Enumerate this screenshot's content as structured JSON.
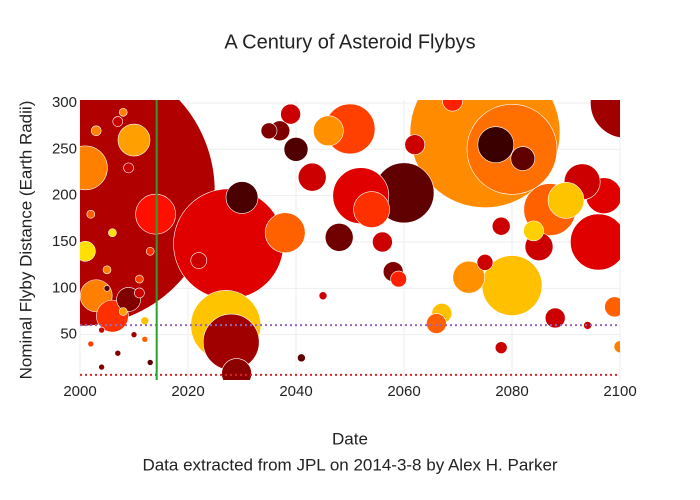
{
  "chart_data": {
    "type": "bubble",
    "title": "A Century of Asteroid Flybys",
    "x_label": "Date",
    "y_label": "Nominal Flyby Distance (Earth Radii)",
    "annotation": "Data extracted from JPL on 2014-3-8 by Alex H. Parker",
    "xlim": [
      2000,
      2100
    ],
    "ylim": [
      0,
      300
    ],
    "xticks": [
      2000,
      2020,
      2040,
      2060,
      2080,
      2100
    ],
    "yticks": [
      50,
      100,
      150,
      200,
      250,
      300
    ],
    "grid": true,
    "vline": {
      "value": 2014.2,
      "color": "#2ca02c"
    },
    "hlines": [
      {
        "value": 60.3,
        "color": "#9467bd"
      },
      {
        "value": 6.6,
        "color": "#d62728"
      }
    ],
    "series": [
      {
        "x": [
          2000,
          2075,
          2027.5,
          2080,
          2101,
          2027,
          2060,
          2028,
          2052,
          2080,
          2096,
          2087,
          2050,
          2001,
          2014,
          2054,
          2077,
          2097,
          2093,
          2030,
          2038,
          2003,
          2006,
          2010,
          2072,
          2029,
          2046,
          2043,
          2090,
          2085,
          2048,
          2040,
          2082,
          2009,
          2037,
          2039,
          2001,
          2056,
          2058,
          2067,
          2066,
          2088,
          2084,
          2062,
          2099,
          2059,
          2078,
          2075,
          2022,
          2035,
          2069,
          2078,
          2100,
          2045,
          2041,
          2094,
          2002,
          2004,
          2005,
          2007,
          2008,
          2011,
          2012,
          2013,
          2003,
          2006,
          2009,
          2011,
          2004,
          2012,
          2007,
          2002,
          2010,
          2013,
          2005,
          2008
        ],
        "values": [
          205,
          268,
          148,
          250,
          300,
          60,
          203,
          42,
          200,
          103,
          150,
          185,
          272,
          230,
          180,
          185,
          255,
          200,
          215,
          198,
          160,
          92,
          70,
          260,
          112,
          8,
          270,
          220,
          195,
          145,
          155,
          250,
          240,
          88,
          270,
          288,
          140,
          150,
          118,
          73,
          62,
          68,
          162,
          255,
          80,
          110,
          167,
          128,
          130,
          270,
          302,
          36,
          37,
          92,
          25,
          60,
          40,
          55,
          120,
          30,
          75,
          95,
          45,
          20,
          270,
          160,
          230,
          110,
          15,
          65,
          280,
          180,
          50,
          140,
          100,
          290
        ],
        "sizes": [
          270,
          150,
          110,
          90,
          70,
          70,
          60,
          56,
          56,
          60,
          56,
          52,
          50,
          44,
          40,
          36,
          36,
          36,
          36,
          32,
          40,
          32,
          32,
          32,
          32,
          30,
          30,
          28,
          36,
          28,
          28,
          24,
          24,
          24,
          20,
          20,
          20,
          20,
          20,
          20,
          20,
          20,
          20,
          20,
          20,
          16,
          18,
          16,
          16,
          16,
          20,
          12,
          12,
          8,
          8,
          8,
          6,
          6,
          8,
          6,
          8,
          10,
          6,
          6,
          10,
          8,
          10,
          8,
          6,
          8,
          10,
          8,
          6,
          8,
          6,
          8
        ],
        "colors": [
          "#b00000",
          "#ff8c00",
          "#e00000",
          "#ff7000",
          "#a00000",
          "#ffc400",
          "#600000",
          "#a00000",
          "#e00000",
          "#ffc000",
          "#e00000",
          "#ff6000",
          "#ff4000",
          "#ff8000",
          "#ff1000",
          "#ff3000",
          "#3a0000",
          "#e00000",
          "#cc0000",
          "#4a0000",
          "#ff6000",
          "#ff8000",
          "#ff3000",
          "#ffa000",
          "#ff9000",
          "#8b0000",
          "#ff9000",
          "#cc0000",
          "#ffc400",
          "#cc0000",
          "#700000",
          "#500000",
          "#600000",
          "#800000",
          "#800000",
          "#cc0000",
          "#ffe000",
          "#cc0000",
          "#800000",
          "#ffc000",
          "#ff6000",
          "#cc0000",
          "#ffd000",
          "#cc0000",
          "#ff6000",
          "#ff2000",
          "#cc0000",
          "#cc0000",
          "#cc0000",
          "#800000",
          "#ff2000",
          "#cc0000",
          "#ff8000",
          "#cc0000",
          "#600000",
          "#cc0000",
          "#ff4000",
          "#cc0000",
          "#ff8000",
          "#800000",
          "#ffa000",
          "#cc0000",
          "#ff6000",
          "#600000",
          "#ff8000",
          "#ffe000",
          "#cc0000",
          "#ff4000",
          "#800000",
          "#ffc000",
          "#cc0000",
          "#ff6000",
          "#a00000",
          "#ff3000",
          "#600000",
          "#ff8000"
        ]
      }
    ]
  }
}
